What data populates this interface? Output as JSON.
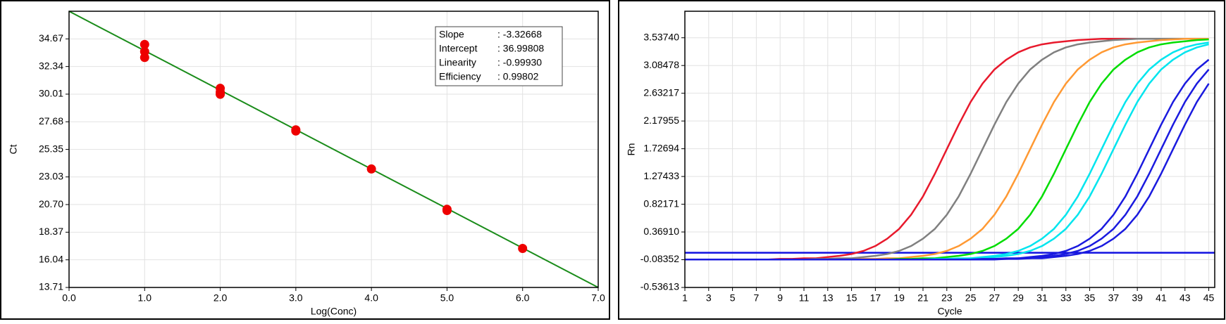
{
  "chart_data": [
    {
      "type": "scatter",
      "x_label": "Log(Conc)",
      "y_label": "Ct",
      "xlim": [
        0,
        7
      ],
      "ylim": [
        13.71,
        37.0
      ],
      "xticks": [
        {
          "value": 0,
          "label": "0.0"
        },
        {
          "value": 1,
          "label": "1.0"
        },
        {
          "value": 2,
          "label": "2.0"
        },
        {
          "value": 3,
          "label": "3.0"
        },
        {
          "value": 4,
          "label": "4.0"
        },
        {
          "value": 5,
          "label": "5.0"
        },
        {
          "value": 6,
          "label": "6.0"
        },
        {
          "value": 7,
          "label": "7.0"
        }
      ],
      "yticks": [
        13.71,
        16.04,
        18.37,
        {
          "value": 20.7,
          "label": "20.70"
        },
        23.03,
        25.35,
        27.68,
        30.01,
        32.34,
        34.67
      ],
      "grid": true,
      "series": [
        {
          "type": "line",
          "color": "#1a8c1a",
          "x": [
            0,
            7
          ],
          "values": [
            36.99808,
            13.71132
          ]
        },
        {
          "type": "scatter",
          "color": "#ee0000",
          "x": [
            1,
            1,
            1,
            2,
            2,
            2,
            3,
            3,
            4,
            5,
            5,
            6
          ],
          "values": [
            34.2,
            33.6,
            33.1,
            30.5,
            30.2,
            30.0,
            27.0,
            26.9,
            23.7,
            20.3,
            20.2,
            17.0
          ]
        }
      ],
      "annotations": [
        {
          "label": "Slope",
          "value": ": -3.32668"
        },
        {
          "label": "Intercept",
          "value": ": 36.99808"
        },
        {
          "label": "Linearity",
          "value": ": -0.99930"
        },
        {
          "label": "Efficiency",
          "value": ": 0.99802"
        }
      ]
    },
    {
      "type": "line",
      "x_label": "Cycle",
      "y_label": "Rn",
      "xlim": [
        1,
        45.5
      ],
      "ylim": [
        -0.53613,
        3.97
      ],
      "xticks": [
        1,
        3,
        5,
        7,
        9,
        11,
        13,
        15,
        17,
        19,
        21,
        23,
        25,
        27,
        29,
        31,
        33,
        35,
        37,
        39,
        41,
        43,
        45
      ],
      "yticks": [
        -0.53613,
        -0.08352,
        {
          "value": 0.3691,
          "label": "0.36910"
        },
        0.82171,
        1.27433,
        1.72694,
        2.17955,
        2.63217,
        3.08478,
        {
          "value": 3.5374,
          "label": "3.53740"
        }
      ],
      "grid": true,
      "threshold": 0.03,
      "threshold_color": "#1010e0",
      "x": [
        1,
        2,
        3,
        4,
        5,
        6,
        7,
        8,
        9,
        10,
        11,
        12,
        13,
        14,
        15,
        16,
        17,
        18,
        19,
        20,
        21,
        22,
        23,
        24,
        25,
        26,
        27,
        28,
        29,
        30,
        31,
        32,
        33,
        34,
        35,
        36,
        37,
        38,
        39,
        40,
        41,
        42,
        43,
        44,
        45
      ],
      "series": [
        {
          "color": "#e8192c",
          "values": [
            -0.08,
            -0.08,
            -0.08,
            -0.08,
            -0.08,
            -0.08,
            -0.08,
            -0.08,
            -0.07,
            -0.07,
            -0.06,
            -0.06,
            -0.04,
            -0.02,
            0.01,
            0.06,
            0.14,
            0.26,
            0.42,
            0.65,
            0.95,
            1.32,
            1.72,
            2.12,
            2.49,
            2.79,
            3.02,
            3.18,
            3.3,
            3.38,
            3.43,
            3.46,
            3.48,
            3.5,
            3.51,
            3.52,
            3.52,
            3.52,
            3.52,
            3.52,
            3.52,
            3.52,
            3.52,
            3.52,
            3.52
          ]
        },
        {
          "color": "#808080",
          "values": [
            -0.08,
            -0.08,
            -0.08,
            -0.08,
            -0.08,
            -0.08,
            -0.08,
            -0.08,
            -0.08,
            -0.08,
            -0.08,
            -0.07,
            -0.07,
            -0.06,
            -0.06,
            -0.04,
            -0.02,
            0.01,
            0.06,
            0.14,
            0.26,
            0.42,
            0.65,
            0.95,
            1.32,
            1.72,
            2.12,
            2.49,
            2.79,
            3.02,
            3.18,
            3.3,
            3.38,
            3.43,
            3.46,
            3.48,
            3.5,
            3.51,
            3.52,
            3.52,
            3.52,
            3.52,
            3.52,
            3.52,
            3.52
          ]
        },
        {
          "color": "#ff9933",
          "values": [
            -0.08,
            -0.08,
            -0.08,
            -0.08,
            -0.08,
            -0.08,
            -0.08,
            -0.08,
            -0.08,
            -0.08,
            -0.08,
            -0.08,
            -0.08,
            -0.08,
            -0.08,
            -0.07,
            -0.07,
            -0.06,
            -0.06,
            -0.04,
            -0.02,
            0.01,
            0.06,
            0.14,
            0.26,
            0.42,
            0.65,
            0.95,
            1.32,
            1.72,
            2.12,
            2.49,
            2.79,
            3.02,
            3.18,
            3.3,
            3.38,
            3.43,
            3.46,
            3.48,
            3.5,
            3.51,
            3.52,
            3.52,
            3.52
          ]
        },
        {
          "color": "#00dd00",
          "values": [
            -0.08,
            -0.08,
            -0.08,
            -0.08,
            -0.08,
            -0.08,
            -0.08,
            -0.08,
            -0.08,
            -0.08,
            -0.08,
            -0.08,
            -0.08,
            -0.08,
            -0.08,
            -0.08,
            -0.08,
            -0.08,
            -0.07,
            -0.07,
            -0.06,
            -0.06,
            -0.04,
            -0.02,
            0.01,
            0.06,
            0.14,
            0.26,
            0.42,
            0.65,
            0.95,
            1.32,
            1.72,
            2.12,
            2.49,
            2.79,
            3.02,
            3.18,
            3.3,
            3.38,
            3.43,
            3.46,
            3.48,
            3.5,
            3.51
          ]
        },
        {
          "color": "#00e5ee",
          "values": [
            -0.08,
            -0.08,
            -0.08,
            -0.08,
            -0.08,
            -0.08,
            -0.08,
            -0.08,
            -0.08,
            -0.08,
            -0.08,
            -0.08,
            -0.08,
            -0.08,
            -0.08,
            -0.08,
            -0.08,
            -0.08,
            -0.08,
            -0.08,
            -0.08,
            -0.07,
            -0.07,
            -0.06,
            -0.06,
            -0.04,
            -0.02,
            0.01,
            0.06,
            0.14,
            0.26,
            0.42,
            0.65,
            0.95,
            1.32,
            1.72,
            2.12,
            2.49,
            2.79,
            3.02,
            3.18,
            3.3,
            3.38,
            3.43,
            3.46
          ]
        },
        {
          "color": "#00e5ee",
          "values": [
            -0.08,
            -0.08,
            -0.08,
            -0.08,
            -0.08,
            -0.08,
            -0.08,
            -0.08,
            -0.08,
            -0.08,
            -0.08,
            -0.08,
            -0.08,
            -0.08,
            -0.08,
            -0.08,
            -0.08,
            -0.08,
            -0.08,
            -0.08,
            -0.08,
            -0.08,
            -0.07,
            -0.07,
            -0.06,
            -0.06,
            -0.04,
            -0.02,
            0.01,
            0.06,
            0.14,
            0.26,
            0.42,
            0.65,
            0.95,
            1.32,
            1.72,
            2.12,
            2.49,
            2.79,
            3.02,
            3.18,
            3.3,
            3.38,
            3.43
          ]
        },
        {
          "color": "#1a1adf",
          "values": [
            -0.08,
            -0.08,
            -0.08,
            -0.08,
            -0.08,
            -0.08,
            -0.08,
            -0.08,
            -0.08,
            -0.08,
            -0.08,
            -0.08,
            -0.08,
            -0.08,
            -0.08,
            -0.08,
            -0.08,
            -0.08,
            -0.08,
            -0.08,
            -0.08,
            -0.08,
            -0.08,
            -0.08,
            -0.08,
            -0.07,
            -0.07,
            -0.06,
            -0.06,
            -0.04,
            -0.02,
            0.01,
            0.06,
            0.14,
            0.26,
            0.42,
            0.65,
            0.95,
            1.32,
            1.72,
            2.12,
            2.49,
            2.79,
            3.02,
            3.18
          ]
        },
        {
          "color": "#1a1adf",
          "values": [
            -0.08,
            -0.08,
            -0.08,
            -0.08,
            -0.08,
            -0.08,
            -0.08,
            -0.08,
            -0.08,
            -0.08,
            -0.08,
            -0.08,
            -0.08,
            -0.08,
            -0.08,
            -0.08,
            -0.08,
            -0.08,
            -0.08,
            -0.08,
            -0.08,
            -0.08,
            -0.08,
            -0.08,
            -0.08,
            -0.08,
            -0.07,
            -0.07,
            -0.06,
            -0.06,
            -0.04,
            -0.02,
            0.01,
            0.06,
            0.14,
            0.26,
            0.42,
            0.65,
            0.95,
            1.32,
            1.72,
            2.12,
            2.49,
            2.79,
            3.02
          ]
        },
        {
          "color": "#1a1adf",
          "values": [
            -0.08,
            -0.08,
            -0.08,
            -0.08,
            -0.08,
            -0.08,
            -0.08,
            -0.08,
            -0.08,
            -0.08,
            -0.08,
            -0.08,
            -0.08,
            -0.08,
            -0.08,
            -0.08,
            -0.08,
            -0.08,
            -0.08,
            -0.08,
            -0.08,
            -0.08,
            -0.08,
            -0.08,
            -0.08,
            -0.08,
            -0.08,
            -0.07,
            -0.07,
            -0.06,
            -0.06,
            -0.04,
            -0.02,
            0.01,
            0.06,
            0.14,
            0.26,
            0.42,
            0.65,
            0.95,
            1.32,
            1.72,
            2.12,
            2.49,
            2.79
          ]
        }
      ]
    }
  ]
}
